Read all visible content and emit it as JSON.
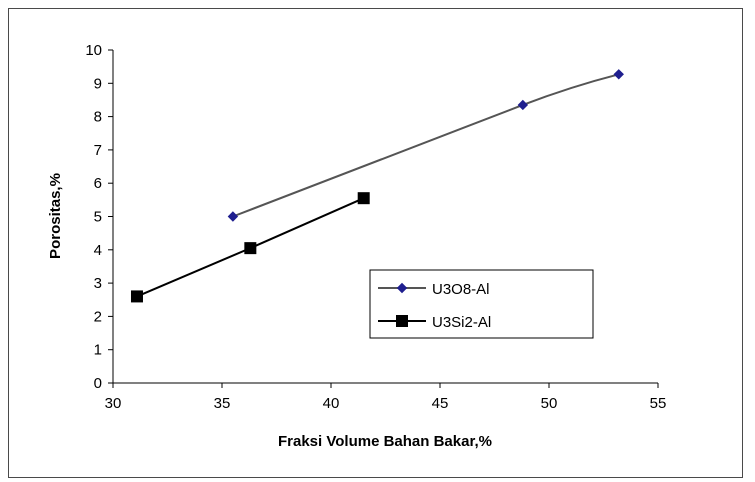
{
  "chart_data": {
    "type": "line",
    "title": "",
    "xlabel": "Fraksi Volume Bahan Bakar,%",
    "ylabel": "Porositas,%",
    "xlim": [
      30,
      55
    ],
    "ylim": [
      0,
      10
    ],
    "xticks": [
      30,
      35,
      40,
      45,
      50,
      55
    ],
    "yticks": [
      0,
      1,
      2,
      3,
      4,
      5,
      6,
      7,
      8,
      9,
      10
    ],
    "grid": false,
    "legend_position": "center-right",
    "series": [
      {
        "name": "U3O8-Al",
        "marker": "diamond",
        "color": "#1f1f8f",
        "line_color": "#555555",
        "points": [
          {
            "x": 35.5,
            "y": 5.0
          },
          {
            "x": 48.8,
            "y": 8.35
          },
          {
            "x": 53.2,
            "y": 9.27
          }
        ]
      },
      {
        "name": "U3Si2-Al",
        "marker": "square",
        "color": "#000000",
        "line_color": "#000000",
        "points": [
          {
            "x": 31.1,
            "y": 2.6
          },
          {
            "x": 36.3,
            "y": 4.05
          },
          {
            "x": 41.5,
            "y": 5.55
          }
        ]
      }
    ]
  }
}
